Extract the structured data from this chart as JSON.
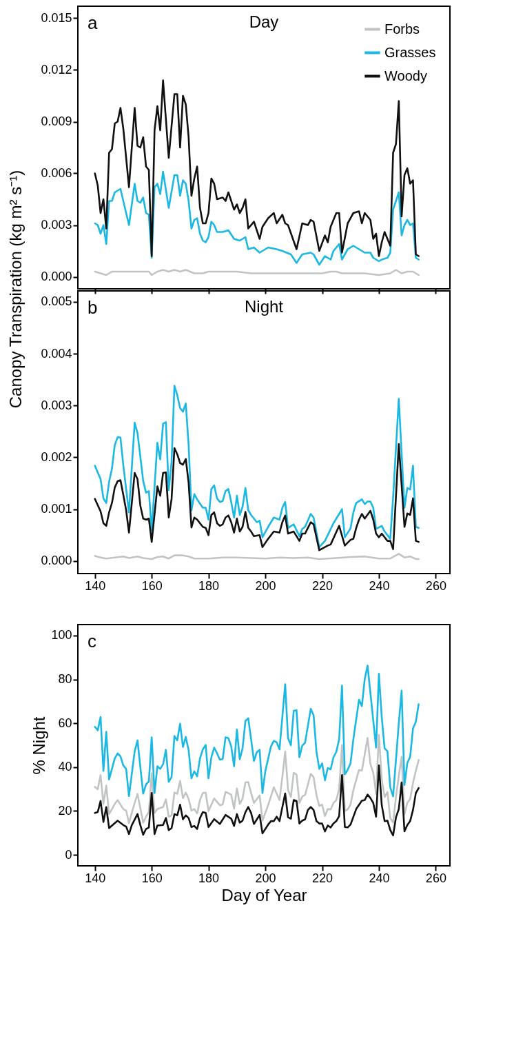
{
  "chart_data": [
    {
      "type": "line",
      "title": "Day",
      "ylabel": "Canopy Transpiration (kg m² s⁻¹)",
      "annotations": [
        "a"
      ],
      "legend": "top right",
      "tick_labels": "y",
      "xlim": [
        134,
        265
      ],
      "xticks": [
        140,
        160,
        180,
        200,
        220,
        240,
        260
      ],
      "ylim": [
        -0.0007,
        0.0157
      ],
      "yticks": [
        {
          "value": 0,
          "label": "0.000"
        },
        {
          "value": 0.003,
          "label": "0.003"
        },
        {
          "value": 0.006,
          "label": "0.006"
        },
        {
          "value": 0.009,
          "label": "0.009"
        },
        {
          "value": 0.012,
          "label": "0.012"
        },
        {
          "value": 0.015,
          "label": "0.015"
        }
      ],
      "series": [
        {
          "name": "Forbs",
          "color": "#c0c4c4",
          "x": [
            140,
            142,
            144,
            146,
            150,
            155,
            159,
            160,
            162,
            164,
            166,
            168,
            170,
            172,
            175,
            178,
            180,
            185,
            190,
            195,
            200,
            205,
            210,
            215,
            220,
            223,
            225,
            227,
            230,
            235,
            240,
            244,
            246,
            248,
            250,
            252,
            254
          ],
          "values": [
            0.0003,
            0.0002,
            0.0001,
            0.0003,
            0.0003,
            0.0003,
            0.0003,
            0.0001,
            0.0003,
            0.0004,
            0.0003,
            0.0004,
            0.0003,
            0.0004,
            0.0002,
            0.0002,
            0.0003,
            0.0003,
            0.0003,
            0.0002,
            0.0002,
            0.0002,
            0.0002,
            0.0002,
            0.0002,
            0.0003,
            0.0003,
            0.0002,
            0.0002,
            0.0002,
            0.0001,
            0.0002,
            0.0004,
            0.0002,
            0.0003,
            0.0003,
            0.0001
          ]
        },
        {
          "name": "Grasses",
          "color": "#1bb8e4",
          "x": [
            140,
            141,
            142,
            143,
            144,
            145,
            146,
            147,
            149,
            152,
            154,
            155,
            156,
            157,
            158,
            159,
            160,
            161,
            162,
            163,
            164,
            166,
            168,
            169,
            170,
            171,
            172,
            173,
            174,
            175,
            176,
            177,
            178,
            179,
            180,
            181,
            182,
            183,
            185,
            187,
            189,
            191,
            193,
            194,
            196,
            198,
            201,
            204,
            206,
            209,
            211,
            213,
            216,
            217,
            219,
            221,
            223,
            224,
            226,
            227,
            229,
            231,
            233,
            235,
            237,
            238,
            240,
            241,
            243,
            244,
            245,
            247,
            248,
            249,
            250,
            251,
            252,
            253,
            254
          ],
          "values": [
            0.0031,
            0.003,
            0.0025,
            0.003,
            0.0019,
            0.0044,
            0.0044,
            0.0049,
            0.0051,
            0.003,
            0.0054,
            0.0044,
            0.0043,
            0.0046,
            0.0037,
            0.0036,
            0.0011,
            0.0052,
            0.0054,
            0.0048,
            0.0061,
            0.004,
            0.0059,
            0.0059,
            0.0047,
            0.0056,
            0.0054,
            0.0044,
            0.0028,
            0.0033,
            0.0034,
            0.0025,
            0.0021,
            0.002,
            0.0023,
            0.0032,
            0.003,
            0.0026,
            0.0026,
            0.0027,
            0.0022,
            0.0021,
            0.0023,
            0.0016,
            0.0017,
            0.0014,
            0.0017,
            0.0016,
            0.0015,
            0.0013,
            0.0008,
            0.0013,
            0.0014,
            0.0013,
            0.0007,
            0.0012,
            0.001,
            0.0015,
            0.0019,
            0.001,
            0.0016,
            0.0018,
            0.0016,
            0.0014,
            0.0014,
            0.0011,
            0.0009,
            0.001,
            0.0011,
            0.0014,
            0.0039,
            0.0049,
            0.0024,
            0.003,
            0.0033,
            0.003,
            0.0031,
            0.0011,
            0.001
          ]
        },
        {
          "name": "Woody",
          "color": "#111111",
          "x": [
            140,
            141,
            142,
            143,
            144,
            145,
            146,
            147,
            148,
            149,
            150,
            152,
            154,
            155,
            156,
            157,
            158,
            159,
            160,
            161,
            162,
            163,
            164,
            166,
            168,
            169,
            170,
            171,
            172,
            173,
            174,
            175,
            176,
            177,
            178,
            179,
            180,
            181,
            182,
            183,
            185,
            186,
            187,
            189,
            190,
            191,
            192,
            193,
            194,
            196,
            198,
            199,
            201,
            203,
            204,
            206,
            207,
            208,
            211,
            213,
            215,
            216,
            217,
            219,
            221,
            222,
            223,
            225,
            226,
            227,
            229,
            231,
            233,
            234,
            235,
            237,
            238,
            239,
            240,
            241,
            242,
            244,
            245,
            246,
            247,
            248,
            249,
            250,
            251,
            252,
            253,
            254
          ],
          "values": [
            0.006,
            0.0053,
            0.0037,
            0.0045,
            0.0028,
            0.0072,
            0.0074,
            0.0089,
            0.009,
            0.0098,
            0.0086,
            0.0052,
            0.0098,
            0.0076,
            0.0075,
            0.0081,
            0.0064,
            0.0062,
            0.0012,
            0.0085,
            0.0099,
            0.0085,
            0.0114,
            0.0069,
            0.0106,
            0.0106,
            0.0075,
            0.0105,
            0.01,
            0.0081,
            0.0047,
            0.0057,
            0.0064,
            0.004,
            0.0031,
            0.0031,
            0.0037,
            0.0057,
            0.0054,
            0.0045,
            0.0046,
            0.0044,
            0.0049,
            0.0039,
            0.0042,
            0.0037,
            0.004,
            0.0045,
            0.0028,
            0.0032,
            0.0022,
            0.0029,
            0.0034,
            0.0037,
            0.0031,
            0.0036,
            0.0031,
            0.003,
            0.0016,
            0.0031,
            0.003,
            0.0033,
            0.0032,
            0.0015,
            0.0024,
            0.002,
            0.0029,
            0.0037,
            0.0037,
            0.0014,
            0.0031,
            0.0037,
            0.0038,
            0.0031,
            0.0037,
            0.0033,
            0.0022,
            0.0025,
            0.0012,
            0.002,
            0.0026,
            0.0018,
            0.0072,
            0.0077,
            0.0102,
            0.0035,
            0.0059,
            0.0063,
            0.0054,
            0.0056,
            0.0013,
            0.0012
          ]
        }
      ]
    },
    {
      "type": "line",
      "title": "Night",
      "annotations": [
        "b"
      ],
      "xlim": [
        134,
        265
      ],
      "xticks": [
        140,
        160,
        180,
        200,
        220,
        240,
        260
      ],
      "ylim": [
        -0.00024,
        0.00521
      ],
      "yticks": [
        {
          "value": 0,
          "label": "0.000"
        },
        {
          "value": 0.001,
          "label": "0.001"
        },
        {
          "value": 0.002,
          "label": "0.002"
        },
        {
          "value": 0.003,
          "label": "0.003"
        },
        {
          "value": 0.004,
          "label": "0.004"
        },
        {
          "value": 0.005,
          "label": "0.005"
        }
      ],
      "series": [
        {
          "color": "#c0c4c4",
          "x": [
            140,
            142,
            144,
            147,
            150,
            152,
            155,
            157,
            160,
            162,
            164,
            166,
            168,
            171,
            173,
            175,
            180,
            185,
            190,
            195,
            200,
            205,
            210,
            215,
            219,
            225,
            230,
            235,
            240,
            244,
            247,
            249,
            251,
            253,
            254
          ],
          "values": [
            0.0001,
            7e-05,
            5e-05,
            7e-05,
            9e-05,
            6e-05,
            9e-05,
            6e-05,
            4e-05,
            8e-05,
            9e-05,
            5e-05,
            0.00011,
            0.00011,
            9e-05,
            5e-05,
            5e-05,
            7e-05,
            7e-05,
            6e-05,
            5e-05,
            7e-05,
            6e-05,
            7e-05,
            4e-05,
            6e-05,
            8e-05,
            9e-05,
            5e-05,
            5e-05,
            0.00014,
            7e-05,
            9e-05,
            4e-05,
            4e-05
          ]
        },
        {
          "color": "#1bb8e4",
          "x": [
            140,
            142,
            143,
            144,
            145,
            146,
            147,
            148,
            149,
            150,
            152,
            154,
            155,
            157,
            158,
            159,
            160,
            162,
            163,
            164,
            165,
            166,
            167,
            168,
            169,
            170,
            171,
            172,
            173,
            174,
            175,
            176,
            178,
            179,
            180,
            181,
            182,
            183,
            184,
            185,
            186,
            187,
            188,
            189,
            190,
            191,
            192,
            193,
            194,
            195,
            197,
            198,
            199,
            201,
            203,
            205,
            206,
            207,
            208,
            210,
            212,
            213,
            214,
            216,
            217,
            219,
            221,
            224,
            227,
            228,
            230,
            231,
            232,
            234,
            235,
            236,
            237,
            238,
            239,
            241,
            242,
            244,
            245,
            247,
            249,
            250,
            251,
            252,
            253,
            254
          ],
          "values": [
            0.00184,
            0.00158,
            0.00121,
            0.00112,
            0.00153,
            0.00178,
            0.00224,
            0.00239,
            0.00238,
            0.00185,
            0.00094,
            0.00267,
            0.00247,
            0.00155,
            0.00132,
            0.00135,
            0.00059,
            0.00228,
            0.00196,
            0.00265,
            0.00268,
            0.00137,
            0.00192,
            0.00338,
            0.0032,
            0.00295,
            0.00288,
            0.00304,
            0.00224,
            0.00098,
            0.00129,
            0.00119,
            0.00103,
            0.00103,
            0.0008,
            0.00139,
            0.00146,
            0.00121,
            0.00114,
            0.00116,
            0.00135,
            0.00139,
            0.00114,
            0.00084,
            0.00126,
            0.00089,
            0.00105,
            0.00141,
            0.00098,
            0.00089,
            0.00075,
            0.00078,
            0.00046,
            0.00066,
            0.00084,
            0.0008,
            0.00103,
            0.00114,
            0.00064,
            0.00071,
            0.00048,
            0.00062,
            0.00066,
            0.00091,
            0.00084,
            0.00027,
            0.00039,
            0.00073,
            0.001,
            0.00046,
            0.00063,
            0.00094,
            0.00112,
            0.00119,
            0.0011,
            0.00115,
            0.00115,
            0.00103,
            0.00062,
            0.00068,
            0.00057,
            0.00043,
            0.00123,
            0.00313,
            0.00103,
            0.00141,
            0.00138,
            0.00184,
            0.00066,
            0.00064
          ]
        },
        {
          "color": "#111111",
          "x": [
            140,
            142,
            143,
            144,
            145,
            146,
            147,
            148,
            149,
            150,
            151,
            152,
            154,
            155,
            156,
            157,
            158,
            159,
            160,
            162,
            163,
            164,
            165,
            166,
            167,
            168,
            169,
            170,
            171,
            172,
            173,
            174,
            175,
            176,
            178,
            179,
            180,
            181,
            182,
            183,
            184,
            185,
            186,
            187,
            188,
            189,
            190,
            191,
            192,
            193,
            194,
            195,
            196,
            198,
            199,
            201,
            203,
            205,
            206,
            207,
            208,
            210,
            212,
            213,
            214,
            216,
            217,
            219,
            222,
            223,
            226,
            228,
            230,
            231,
            232,
            233,
            234,
            235,
            237,
            238,
            239,
            240,
            241,
            243,
            244,
            245,
            247,
            249,
            250,
            251,
            252,
            253,
            254
          ],
          "values": [
            0.0012,
            0.00096,
            0.00073,
            0.00068,
            0.00094,
            0.00112,
            0.00142,
            0.00154,
            0.00156,
            0.00128,
            0.00098,
            0.00055,
            0.0017,
            0.00158,
            0.00107,
            0.00082,
            0.0008,
            0.00082,
            0.00037,
            0.00144,
            0.00126,
            0.0017,
            0.00171,
            0.00084,
            0.0012,
            0.00218,
            0.00206,
            0.00189,
            0.00186,
            0.00197,
            0.00151,
            0.00065,
            0.00084,
            0.0008,
            0.00066,
            0.00064,
            0.0005,
            0.00089,
            0.00094,
            0.00073,
            0.00068,
            0.00071,
            0.00084,
            0.00088,
            0.00075,
            0.00055,
            0.00082,
            0.00057,
            0.00066,
            0.00095,
            0.00064,
            0.00057,
            0.00048,
            0.0005,
            0.00027,
            0.00043,
            0.00057,
            0.00055,
            0.00075,
            0.00088,
            0.00053,
            0.00057,
            0.00039,
            0.00053,
            0.00053,
            0.00075,
            0.00071,
            0.00021,
            0.0003,
            0.00032,
            0.00068,
            0.0003,
            0.00041,
            0.00043,
            0.00064,
            0.0008,
            0.00091,
            0.00082,
            0.00097,
            0.0008,
            0.00053,
            0.00046,
            0.00053,
            0.00039,
            0.00039,
            0.00023,
            0.00226,
            0.00066,
            0.00092,
            0.00089,
            0.00121,
            0.00039,
            0.00037
          ]
        }
      ]
    },
    {
      "type": "line",
      "ylabel": "% Night",
      "xlabel": "Day of Year",
      "annotations": [
        "c"
      ],
      "xlim": [
        134,
        265
      ],
      "xticks": [
        140,
        160,
        180,
        200,
        220,
        240,
        260
      ],
      "ylim": [
        -5,
        105
      ],
      "yticks": [
        0,
        20,
        40,
        60,
        80,
        100
      ],
      "series": [
        {
          "color": "#c0c4c4",
          "x": [
            140,
            141,
            142,
            143,
            144,
            145,
            147,
            148,
            150,
            151,
            152,
            154,
            155,
            157,
            158,
            159,
            160,
            161,
            162,
            164,
            165,
            166,
            167,
            168,
            169,
            170,
            171,
            172,
            173,
            174,
            175,
            176,
            177,
            178,
            179,
            180,
            182,
            184,
            185,
            186,
            188,
            189,
            190,
            191,
            192,
            193,
            194,
            195,
            196,
            198,
            199,
            201,
            203,
            205,
            206,
            207,
            208,
            209,
            210,
            211,
            212,
            213,
            214,
            216,
            217,
            218,
            219,
            220,
            221,
            222,
            223,
            224,
            225,
            226,
            227,
            228,
            229,
            230,
            231,
            233,
            234,
            236,
            237,
            238,
            239,
            240,
            241,
            242,
            243,
            244,
            245,
            246,
            247,
            248,
            249,
            250,
            251,
            252,
            253,
            254
          ],
          "values": [
            31.0,
            29.9,
            36.4,
            23.2,
            31.6,
            18.6,
            23.2,
            25.0,
            20.9,
            20.2,
            14.5,
            23.7,
            27.8,
            14.7,
            17.4,
            19.5,
            37.2,
            19.1,
            20.9,
            21.8,
            25.3,
            17.4,
            18.0,
            28.4,
            27.8,
            33.7,
            25.9,
            28.4,
            25.5,
            20.2,
            20.9,
            18.9,
            25.0,
            28.2,
            28.4,
            20.0,
            25.7,
            22.6,
            23.0,
            28.7,
            27.5,
            21.1,
            30.3,
            23.2,
            25.7,
            33.0,
            33.2,
            28.2,
            23.7,
            27.1,
            15.6,
            22.7,
            30.8,
            25.0,
            35.5,
            47.1,
            29.6,
            26.4,
            37.4,
            36.6,
            23.7,
            26.6,
            27.3,
            36.9,
            35.5,
            27.3,
            22.3,
            22.9,
            17.7,
            20.9,
            20.7,
            23.7,
            25.0,
            30.0,
            50.1,
            20.0,
            20.7,
            22.9,
            29.6,
            38.7,
            38.4,
            53.3,
            41.5,
            37.5,
            27.8,
            54.7,
            34.6,
            26.4,
            28.7,
            16.8,
            14.7,
            26.4,
            36.0,
            44.7,
            18.6,
            23.7,
            25.5,
            32.8,
            38.3,
            43.3
          ]
        },
        {
          "color": "#1bb8e4",
          "x": [
            140,
            141,
            142,
            143,
            144,
            145,
            147,
            148,
            149,
            150,
            151,
            152,
            154,
            155,
            157,
            158,
            159,
            160,
            161,
            162,
            163,
            164,
            165,
            166,
            167,
            168,
            169,
            170,
            171,
            172,
            173,
            174,
            175,
            176,
            177,
            178,
            179,
            180,
            181,
            182,
            183,
            184,
            185,
            186,
            187,
            188,
            189,
            190,
            191,
            192,
            193,
            194,
            195,
            196,
            197,
            198,
            199,
            200,
            202,
            203,
            204,
            205,
            207,
            208,
            209,
            210,
            211,
            212,
            213,
            214,
            216,
            217,
            218,
            219,
            220,
            221,
            222,
            223,
            224,
            225,
            226,
            227,
            228,
            229,
            230,
            231,
            233,
            234,
            235,
            236,
            239,
            240,
            241,
            242,
            243,
            244,
            245,
            247,
            248,
            249,
            250,
            251,
            252,
            253,
            254
          ],
          "values": [
            58.4,
            56.8,
            62.9,
            38.3,
            56.1,
            34.4,
            44.0,
            46.3,
            44.9,
            40.8,
            39.2,
            26.8,
            47.2,
            52.2,
            27.9,
            32.1,
            33.5,
            53.6,
            28.2,
            40.4,
            39.2,
            41.3,
            47.9,
            33.3,
            35.5,
            54.2,
            52.2,
            59.8,
            49.2,
            53.8,
            47.7,
            34.9,
            38.1,
            35.8,
            44.0,
            48.1,
            50.1,
            34.9,
            44.5,
            48.9,
            46.3,
            43.4,
            43.7,
            53.6,
            53.2,
            49.5,
            40.4,
            57.1,
            43.6,
            48.6,
            61.1,
            62.3,
            52.7,
            42.8,
            46.8,
            47.9,
            28.2,
            38.1,
            49.5,
            52.0,
            51.3,
            48.1,
            77.8,
            53.2,
            50.0,
            65.7,
            65.9,
            44.5,
            49.8,
            51.1,
            66.6,
            63.7,
            47.2,
            39.2,
            41.7,
            34.0,
            39.6,
            39.0,
            44.5,
            47.0,
            52.7,
            77.2,
            36.7,
            38.8,
            41.7,
            52.7,
            70.7,
            67.8,
            80.1,
            86.3,
            48.9,
            82.6,
            62.7,
            48.6,
            47.2,
            30.8,
            26.7,
            60.0,
            74.9,
            31.9,
            41.9,
            44.7,
            57.7,
            60.7,
            68.7
          ]
        },
        {
          "color": "#111111",
          "x": [
            140,
            141,
            142,
            143,
            144,
            145,
            148,
            150,
            151,
            152,
            153,
            155,
            156,
            157,
            158,
            159,
            160,
            161,
            162,
            164,
            165,
            166,
            167,
            168,
            169,
            170,
            171,
            172,
            173,
            174,
            175,
            176,
            177,
            178,
            179,
            180,
            182,
            184,
            186,
            188,
            189,
            190,
            191,
            192,
            193,
            194,
            195,
            196,
            198,
            199,
            201,
            202,
            203,
            204,
            205,
            207,
            208,
            209,
            210,
            211,
            212,
            213,
            214,
            215,
            216,
            217,
            218,
            219,
            220,
            221,
            222,
            223,
            224,
            225,
            226,
            227,
            228,
            229,
            230,
            232,
            234,
            235,
            236,
            237,
            238,
            239,
            240,
            241,
            242,
            243,
            244,
            245,
            246,
            247,
            248,
            249,
            250,
            251,
            252,
            253,
            254
          ],
          "values": [
            19.1,
            19.5,
            24.6,
            15.0,
            21.8,
            12.2,
            15.6,
            13.6,
            12.9,
            9.5,
            13.6,
            18.6,
            13.6,
            9.2,
            11.8,
            12.5,
            28.2,
            9.5,
            13.4,
            13.6,
            16.8,
            11.3,
            12.2,
            18.6,
            18.0,
            22.9,
            16.2,
            18.0,
            16.8,
            12.7,
            13.2,
            11.8,
            16.8,
            19.5,
            19.1,
            12.7,
            16.3,
            14.1,
            18.2,
            16.5,
            13.2,
            18.6,
            14.7,
            15.6,
            19.5,
            21.8,
            19.1,
            14.1,
            18.2,
            9.8,
            13.8,
            15.4,
            15.4,
            17.4,
            15.4,
            28.0,
            17.1,
            16.5,
            25.0,
            24.6,
            14.3,
            15.6,
            16.2,
            20.5,
            21.8,
            20.5,
            15.4,
            14.3,
            14.3,
            10.7,
            13.4,
            12.5,
            14.3,
            15.4,
            17.7,
            36.4,
            12.7,
            12.5,
            13.8,
            20.9,
            24.7,
            25.0,
            27.5,
            25.9,
            23.7,
            17.4,
            40.8,
            22.7,
            15.4,
            15.6,
            11.3,
            8.9,
            17.1,
            20.9,
            33.0,
            10.7,
            13.6,
            15.4,
            20.5,
            28.2,
            30.5
          ]
        }
      ]
    }
  ]
}
